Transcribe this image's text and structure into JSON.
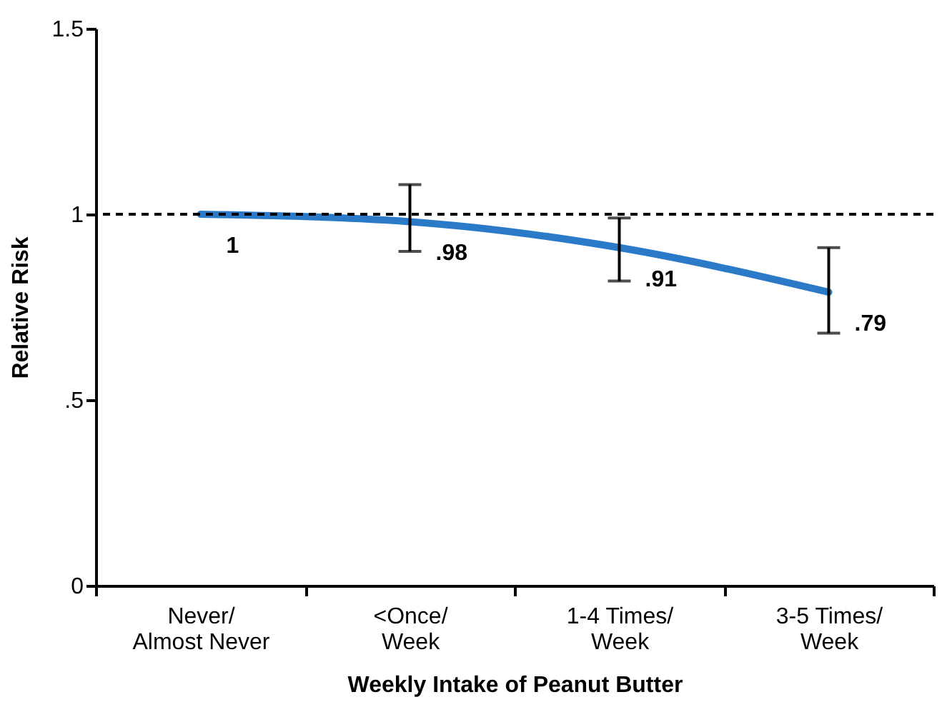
{
  "chart_data": {
    "type": "line",
    "xlabel": "Weekly Intake of Peanut Butter",
    "ylabel": "Relative Risk",
    "categories": [
      "Never/\nAlmost Never",
      "<Once/\nWeek",
      "1-4 Times/\nWeek",
      "3-5 Times/\nWeek"
    ],
    "series": [
      {
        "color": "#2a7ac8",
        "values": [
          1,
          0.98,
          0.91,
          0.79
        ],
        "errors": [
          null,
          [
            0.9,
            1.08
          ],
          [
            0.82,
            0.99
          ],
          [
            0.68,
            0.91
          ]
        ],
        "value_labels": [
          "1",
          ".98",
          ".91",
          ".79"
        ]
      }
    ],
    "ylim": [
      0,
      1.5
    ],
    "yticks": [
      0,
      {
        "value": 0.5,
        "label": ".5"
      },
      1,
      1.5
    ],
    "ref_lines": [
      {
        "axis": "y",
        "value": 1,
        "line_style": "dashed",
        "color": "#000000"
      }
    ],
    "grid": false,
    "marker": "none",
    "line_style": "solid"
  }
}
